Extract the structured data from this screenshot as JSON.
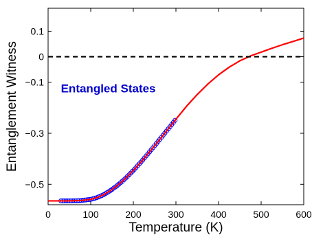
{
  "chart_data": {
    "type": "line",
    "title": "",
    "xlabel": "Temperature (K)",
    "ylabel": "Entanglement Witness",
    "xlim": [
      0,
      600
    ],
    "ylim": [
      -0.58,
      0.19
    ],
    "x_ticks": [
      0,
      100,
      200,
      300,
      400,
      500,
      600
    ],
    "x_tick_labels": [
      "0",
      "100",
      "200",
      "300",
      "400",
      "500",
      "600"
    ],
    "y_ticks": [
      0.1,
      0,
      -0.1,
      -0.3,
      -0.5
    ],
    "y_tick_labels": [
      "0.1",
      "0",
      "−0.1",
      "−0.3",
      "−0.5"
    ],
    "grid": false,
    "annotation": {
      "text": "Entangled States",
      "color": "#0000cc",
      "x": 30,
      "y": -0.14
    },
    "series": [
      {
        "kind": "line",
        "style": "solid",
        "color": "#ff0000",
        "x": [
          0,
          25,
          50,
          75,
          100,
          115,
          130,
          145,
          160,
          175,
          190,
          205,
          220,
          235,
          250,
          265,
          280,
          300,
          325,
          350,
          375,
          400,
          425,
          450,
          475,
          500,
          525,
          550,
          575,
          600
        ],
        "values": [
          -0.565,
          -0.565,
          -0.565,
          -0.564,
          -0.559,
          -0.552,
          -0.541,
          -0.526,
          -0.508,
          -0.487,
          -0.463,
          -0.437,
          -0.409,
          -0.379,
          -0.349,
          -0.318,
          -0.287,
          -0.245,
          -0.194,
          -0.148,
          -0.107,
          -0.071,
          -0.041,
          -0.016,
          0.003,
          0.018,
          0.033,
          0.047,
          0.06,
          0.073
        ]
      },
      {
        "kind": "scatter",
        "marker": "circle",
        "color": "#0000ff",
        "x_start": 30,
        "x_end": 300,
        "x_step": 4,
        "values_from_line": true
      },
      {
        "kind": "line",
        "style": "dashed",
        "color": "#000000",
        "x": [
          0,
          600
        ],
        "values": [
          0,
          0
        ]
      }
    ]
  }
}
